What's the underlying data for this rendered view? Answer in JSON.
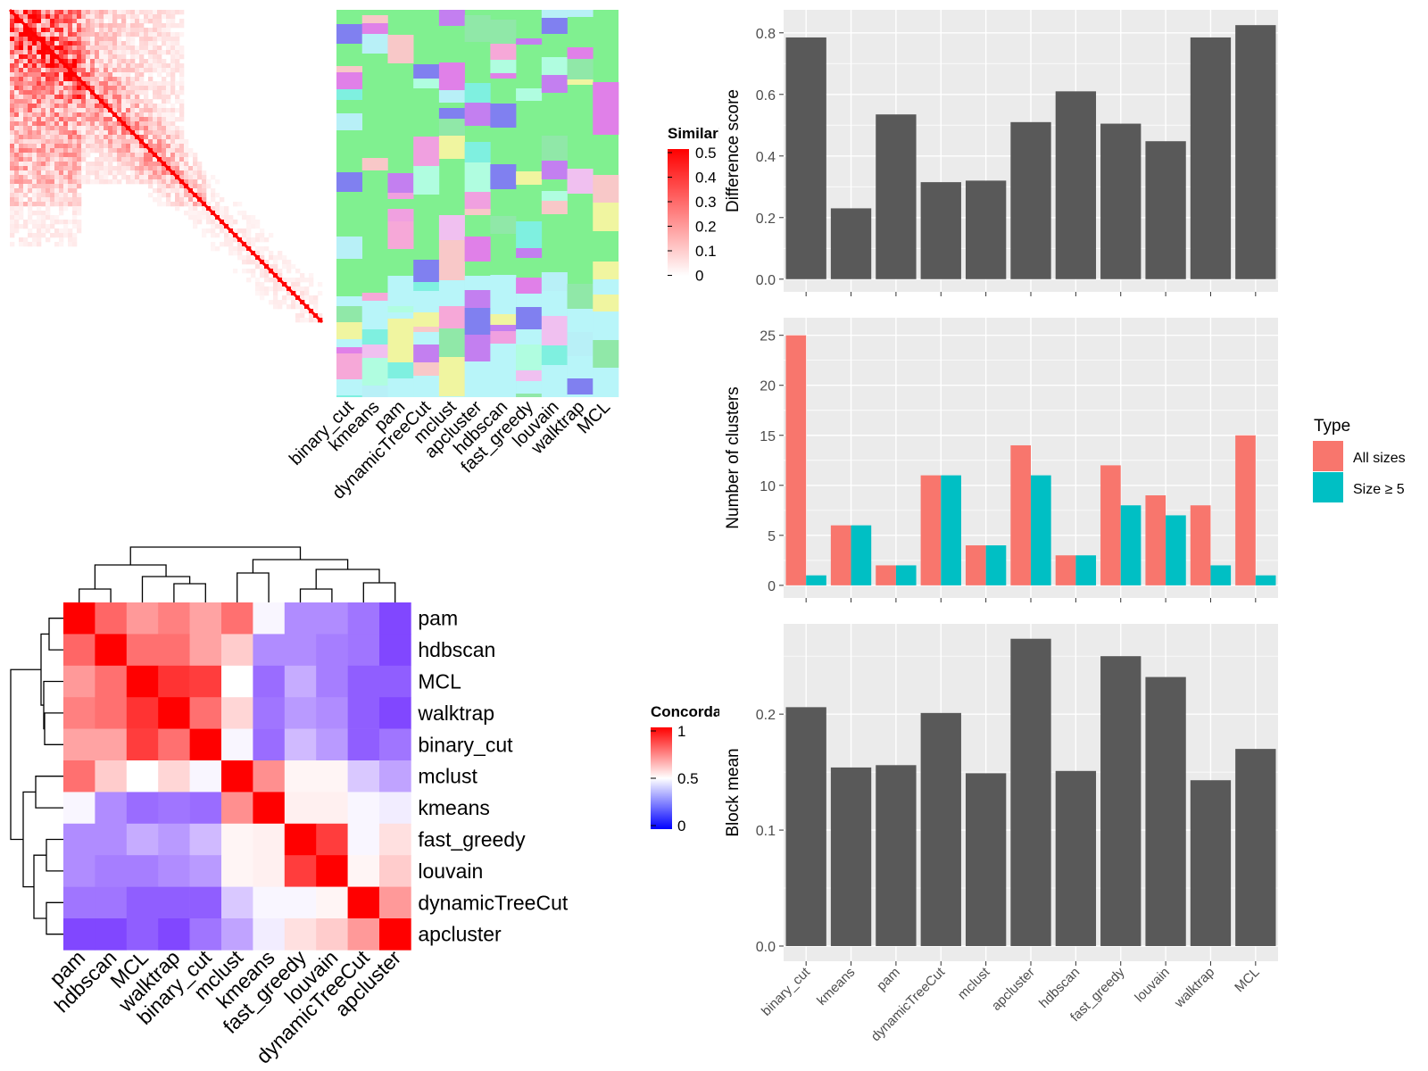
{
  "methods": [
    "binary_cut",
    "kmeans",
    "pam",
    "dynamicTreeCut",
    "mclust",
    "apcluster",
    "hdbscan",
    "fast_greedy",
    "louvain",
    "walktrap",
    "MCL"
  ],
  "similarity_legend": {
    "title": "Similarity",
    "ticks": [
      "0.5",
      "0.4",
      "0.3",
      "0.2",
      "0.1",
      "0"
    ],
    "colors": {
      "high": "#ff0000",
      "low": "#ffffff"
    }
  },
  "concordance_legend": {
    "title": "Concordance",
    "ticks": [
      "1",
      "0.5",
      "0"
    ],
    "colors": {
      "high": "#ff0000",
      "mid": "#ffffff",
      "low": "#0000ff"
    }
  },
  "concordance_order": [
    "pam",
    "hdbscan",
    "MCL",
    "walktrap",
    "binary_cut",
    "mclust",
    "kmeans",
    "fast_greedy",
    "louvain",
    "dynamicTreeCut",
    "apcluster"
  ],
  "concordance_matrix": [
    [
      1.0,
      0.8,
      0.7,
      0.75,
      0.68,
      0.78,
      0.48,
      0.25,
      0.25,
      0.2,
      0.1
    ],
    [
      0.8,
      1.0,
      0.78,
      0.78,
      0.68,
      0.6,
      0.25,
      0.25,
      0.22,
      0.2,
      0.1
    ],
    [
      0.7,
      0.78,
      1.0,
      0.9,
      0.88,
      0.5,
      0.18,
      0.32,
      0.22,
      0.15,
      0.15
    ],
    [
      0.75,
      0.78,
      0.9,
      1.0,
      0.78,
      0.58,
      0.2,
      0.28,
      0.25,
      0.15,
      0.1
    ],
    [
      0.68,
      0.68,
      0.88,
      0.78,
      1.0,
      0.48,
      0.18,
      0.35,
      0.28,
      0.15,
      0.2
    ],
    [
      0.78,
      0.6,
      0.5,
      0.58,
      0.48,
      1.0,
      0.72,
      0.52,
      0.52,
      0.38,
      0.3
    ],
    [
      0.48,
      0.25,
      0.18,
      0.2,
      0.18,
      0.72,
      1.0,
      0.53,
      0.53,
      0.48,
      0.46
    ],
    [
      0.25,
      0.25,
      0.32,
      0.28,
      0.35,
      0.52,
      0.53,
      1.0,
      0.88,
      0.48,
      0.56
    ],
    [
      0.25,
      0.22,
      0.22,
      0.25,
      0.28,
      0.52,
      0.53,
      0.88,
      1.0,
      0.52,
      0.6
    ],
    [
      0.2,
      0.2,
      0.15,
      0.15,
      0.15,
      0.38,
      0.48,
      0.48,
      0.52,
      1.0,
      0.7
    ],
    [
      0.1,
      0.1,
      0.15,
      0.1,
      0.2,
      0.3,
      0.46,
      0.56,
      0.6,
      0.7,
      1.0
    ]
  ],
  "legend_type": {
    "title": "Type",
    "items": [
      {
        "label": "All sizes",
        "color": "#F8766D"
      },
      {
        "label": "Size ≥ 5",
        "color": "#00BFC4"
      }
    ]
  },
  "chart_data": [
    {
      "type": "bar",
      "categories": [
        "binary_cut",
        "kmeans",
        "pam",
        "dynamicTreeCut",
        "mclust",
        "apcluster",
        "hdbscan",
        "fast_greedy",
        "louvain",
        "walktrap",
        "MCL"
      ],
      "values": [
        0.785,
        0.23,
        0.535,
        0.315,
        0.32,
        0.51,
        0.61,
        0.505,
        0.448,
        0.785,
        0.825
      ],
      "ylabel": "Difference score",
      "ylim": [
        0,
        0.85
      ],
      "yticks": [
        "0.0",
        "0.2",
        "0.4",
        "0.6",
        "0.8"
      ],
      "tick_values": [
        0,
        0.2,
        0.4,
        0.6,
        0.8
      ],
      "grid": true,
      "bar_color": "#595959"
    },
    {
      "type": "bar",
      "categories": [
        "binary_cut",
        "kmeans",
        "pam",
        "dynamicTreeCut",
        "mclust",
        "apcluster",
        "hdbscan",
        "fast_greedy",
        "louvain",
        "walktrap",
        "MCL"
      ],
      "series": [
        {
          "name": "All sizes",
          "values": [
            25,
            6,
            2,
            11,
            4,
            14,
            3,
            12,
            9,
            8,
            15
          ]
        },
        {
          "name": "Size ≥ 5",
          "values": [
            1,
            6,
            2,
            11,
            4,
            11,
            3,
            8,
            7,
            2,
            1
          ]
        }
      ],
      "ylabel": "Number of clusters",
      "ylim": [
        0,
        26
      ],
      "yticks": [
        "0",
        "5",
        "10",
        "15",
        "20",
        "25"
      ],
      "tick_values": [
        0,
        5,
        10,
        15,
        20,
        25
      ],
      "grid": true,
      "legend": "right"
    },
    {
      "type": "bar",
      "categories": [
        "binary_cut",
        "kmeans",
        "pam",
        "dynamicTreeCut",
        "mclust",
        "apcluster",
        "hdbscan",
        "fast_greedy",
        "louvain",
        "walktrap",
        "MCL"
      ],
      "values": [
        0.206,
        0.154,
        0.156,
        0.201,
        0.149,
        0.265,
        0.151,
        0.25,
        0.232,
        0.143,
        0.17
      ],
      "ylabel": "Block mean",
      "ylim": [
        0,
        0.27
      ],
      "yticks": [
        "0.0",
        "0.1",
        "0.2"
      ],
      "tick_values": [
        0,
        0.1,
        0.2
      ],
      "grid": true,
      "bar_color": "#595959"
    }
  ]
}
